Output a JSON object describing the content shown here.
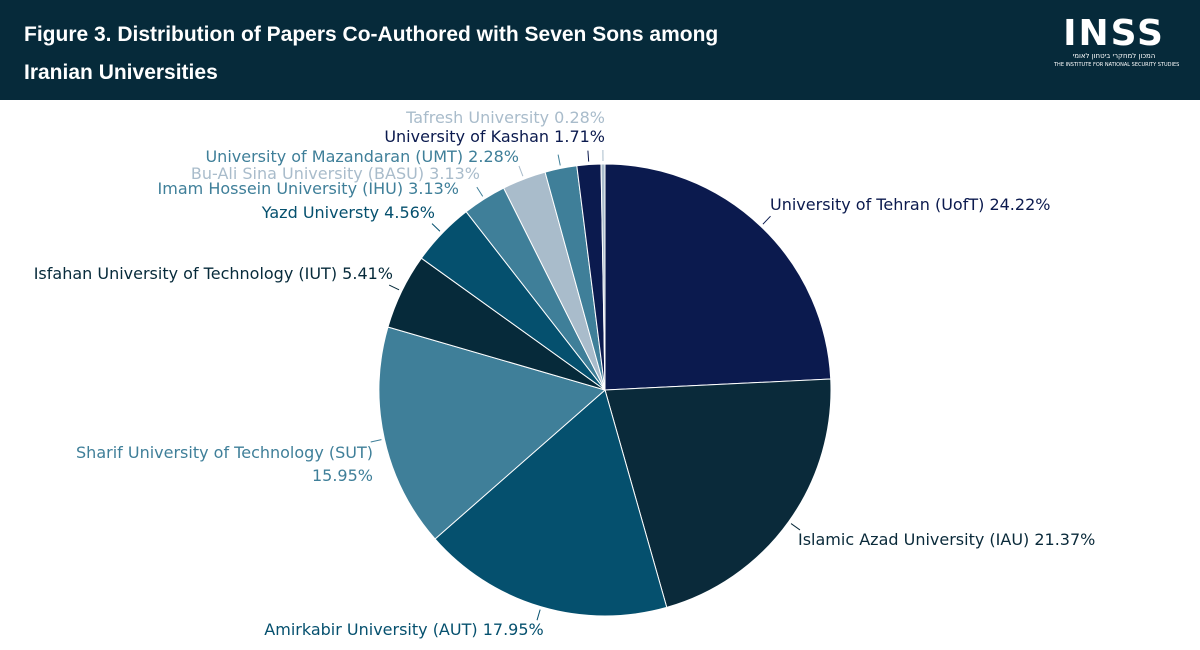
{
  "header": {
    "title": "Figure 3. Distribution of Papers Co-Authored with Seven Sons among Iranian Universities",
    "logo": {
      "name": "INSS",
      "hebrew": "המכון למחקרי ביטחון לאומי",
      "english": "THE INSTITUTE FOR NATIONAL SECURITY STUDIES"
    }
  },
  "chart_data": {
    "type": "pie",
    "categories": [
      "University of Tehran (UofT)",
      "Islamic Azad University (IAU)",
      "Amirkabir University (AUT)",
      "Sharif University of Technology (SUT)",
      "Isfahan University of Technology (IUT)",
      "Yazd Universty",
      "Imam Hossein University (IHU)",
      "Bu-Ali Sina University (BASU)",
      "University of Mazandaran (UMT)",
      "University of Kashan",
      "Tafresh University"
    ],
    "values": [
      24.22,
      21.37,
      17.95,
      15.95,
      5.41,
      4.56,
      3.13,
      3.13,
      2.28,
      1.71,
      0.28
    ],
    "value_labels": [
      "24.22%",
      "21.37%",
      "17.95%",
      "15.95%",
      "5.41%",
      "4.56%",
      "3.13%",
      "3.13%",
      "2.28%",
      "1.71%",
      "0.28%"
    ],
    "colors": [
      "#0b1a4e",
      "#0a2a3a",
      "#05506e",
      "#3f7f99",
      "#062a3a",
      "#05506e",
      "#3f7f99",
      "#a9bccb",
      "#3f7f99",
      "#0b1a4e",
      "#a9bccb"
    ]
  }
}
